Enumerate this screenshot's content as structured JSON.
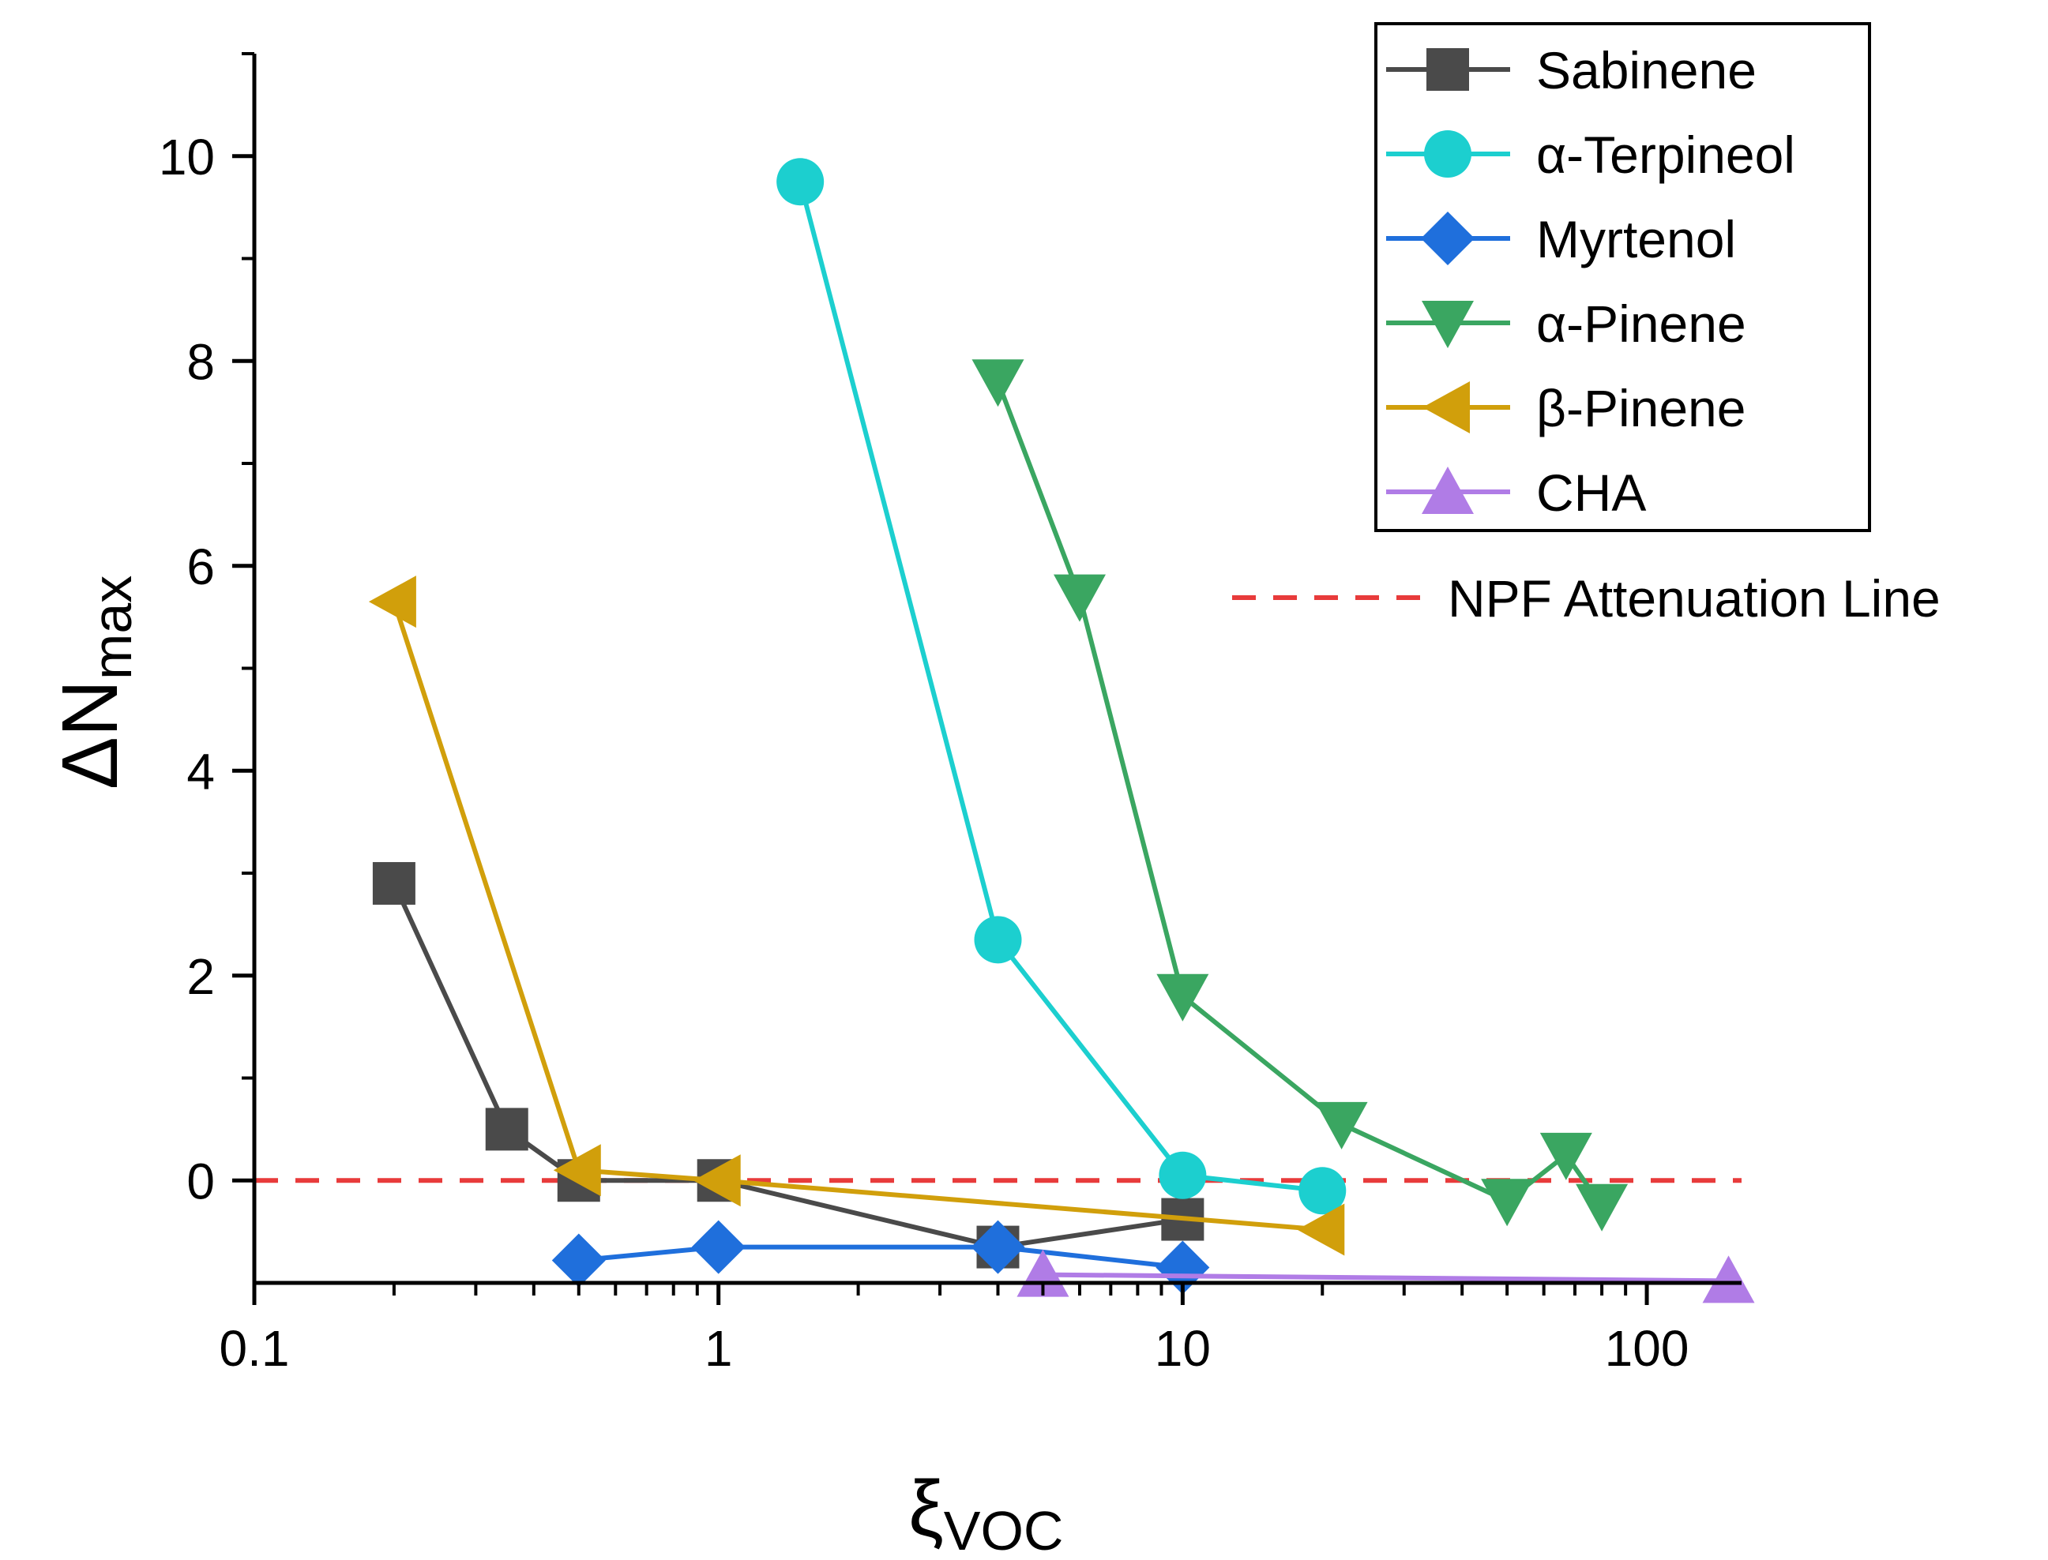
{
  "chart_data": {
    "type": "line",
    "x_scale": "log",
    "xlabel": "ξ",
    "xlabel_sub": "VOC",
    "ylabel": "ΔN",
    "ylabel_sub": "max",
    "xlim": [
      0.1,
      160
    ],
    "ylim": [
      -1,
      11
    ],
    "x_ticks": [
      {
        "value": 0.1,
        "label": "0.1"
      },
      {
        "value": 1,
        "label": "1"
      },
      {
        "value": 10,
        "label": "10"
      },
      {
        "value": 100,
        "label": "100"
      }
    ],
    "y_ticks": [
      {
        "value": 0,
        "label": "0"
      },
      {
        "value": 2,
        "label": "2"
      },
      {
        "value": 4,
        "label": "4"
      },
      {
        "value": 6,
        "label": "6"
      },
      {
        "value": 8,
        "label": "8"
      },
      {
        "value": 10,
        "label": "10"
      }
    ],
    "legend_position": "top-right",
    "series": [
      {
        "name": "Sabinene",
        "color": "#4a4a4a",
        "marker": "square",
        "x": [
          0.2,
          0.35,
          0.5,
          1,
          4,
          10
        ],
        "y": [
          2.9,
          0.5,
          0.0,
          0.0,
          -0.65,
          -0.38
        ]
      },
      {
        "name": "α-Terpineol",
        "color": "#1ccfcf",
        "marker": "circle",
        "x": [
          1.5,
          4,
          10,
          20
        ],
        "y": [
          9.75,
          2.35,
          0.05,
          -0.1
        ]
      },
      {
        "name": "Myrtenol",
        "color": "#1f6fdc",
        "marker": "diamond",
        "x": [
          0.5,
          1,
          4,
          10
        ],
        "y": [
          -0.78,
          -0.65,
          -0.65,
          -0.85
        ]
      },
      {
        "name": "α-Pinene",
        "color": "#3aa661",
        "marker": "triangle-down",
        "x": [
          4,
          6,
          10,
          22,
          50,
          67,
          80
        ],
        "y": [
          7.8,
          5.7,
          1.8,
          0.55,
          -0.2,
          0.25,
          -0.25
        ]
      },
      {
        "name": "β-Pinene",
        "color": "#d19f0b",
        "marker": "triangle-left",
        "x": [
          0.2,
          0.5,
          1,
          20
        ],
        "y": [
          5.65,
          0.1,
          0.0,
          -0.48
        ]
      },
      {
        "name": "CHA",
        "color": "#b07ce6",
        "marker": "triangle-up",
        "x": [
          5,
          150
        ],
        "y": [
          -0.92,
          -0.98
        ]
      }
    ],
    "reference_line": {
      "name": "NPF Attenuation Line",
      "y": 0,
      "color": "#e83b3b",
      "style": "dashed"
    }
  }
}
